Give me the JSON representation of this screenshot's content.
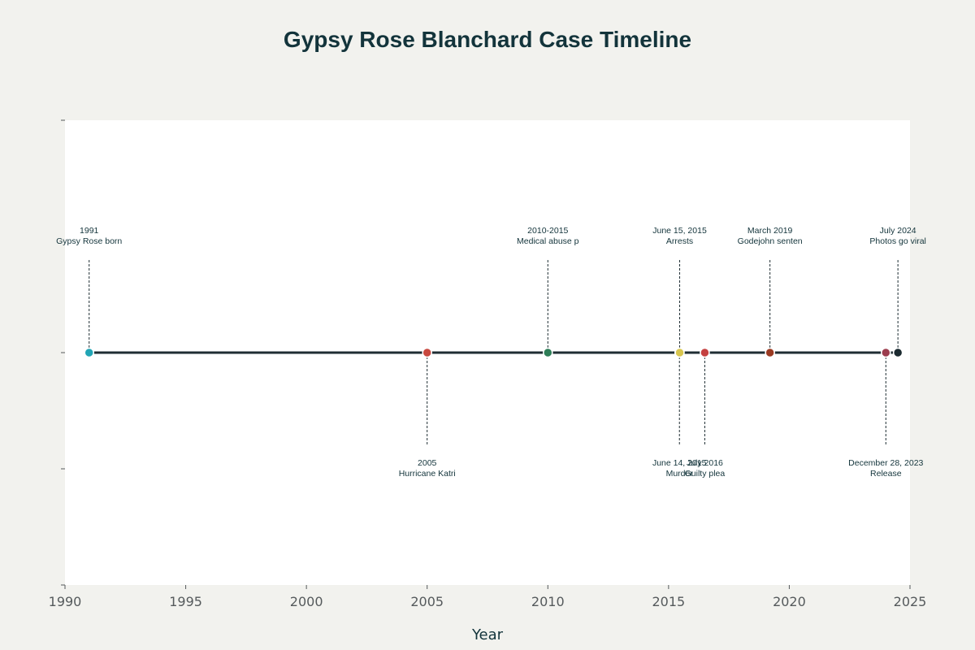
{
  "chart_data": {
    "type": "scatter",
    "title": "Gypsy Rose Blanchard Case Timeline",
    "xlabel": "Year",
    "ylabel": "",
    "xlim": [
      1990,
      2025
    ],
    "x_ticks": [
      1990,
      1995,
      2000,
      2005,
      2010,
      2015,
      2020,
      2025
    ],
    "ylim": [
      -1,
      1
    ],
    "grid": false,
    "legend": "none",
    "timeline_line_color": "#1f2d33",
    "events": [
      {
        "date": "1991",
        "x": 1991.0,
        "label_date": "1991",
        "label_text": "Gypsy Rose born",
        "side": "above",
        "color": "#21a5b5"
      },
      {
        "date": "2005",
        "x": 2005.0,
        "label_date": "2005",
        "label_text": "Hurricane Katri",
        "side": "below",
        "color": "#c8483f"
      },
      {
        "date": "2010-2015",
        "x": 2010.0,
        "label_date": "2010-2015",
        "label_text": "Medical abuse p",
        "side": "above",
        "color": "#2e7d57"
      },
      {
        "date": "June 14, 2015",
        "x": 2015.45,
        "label_date": "June 14, 2015",
        "label_text": "Murder",
        "side": "below",
        "color": "#d8c64f"
      },
      {
        "date": "June 15, 2015",
        "x": 2015.46,
        "label_date": "June 15, 2015",
        "label_text": "Arrests",
        "side": "above",
        "color": "#d8c64f"
      },
      {
        "date": "July 2016",
        "x": 2016.5,
        "label_date": "July 2016",
        "label_text": "Guilty plea",
        "side": "below",
        "color": "#c44040"
      },
      {
        "date": "March 2019",
        "x": 2019.2,
        "label_date": "March 2019",
        "label_text": "Godejohn senten",
        "side": "above",
        "color": "#9a3a22"
      },
      {
        "date": "December 28, 2023",
        "x": 2024.0,
        "label_date": "December 28, 2023",
        "label_text": "Release",
        "side": "below",
        "color": "#9c3d4e"
      },
      {
        "date": "July 2024",
        "x": 2024.5,
        "label_date": "July 2024",
        "label_text": "Photos go viral",
        "side": "above",
        "color": "#1b2a30"
      }
    ]
  }
}
